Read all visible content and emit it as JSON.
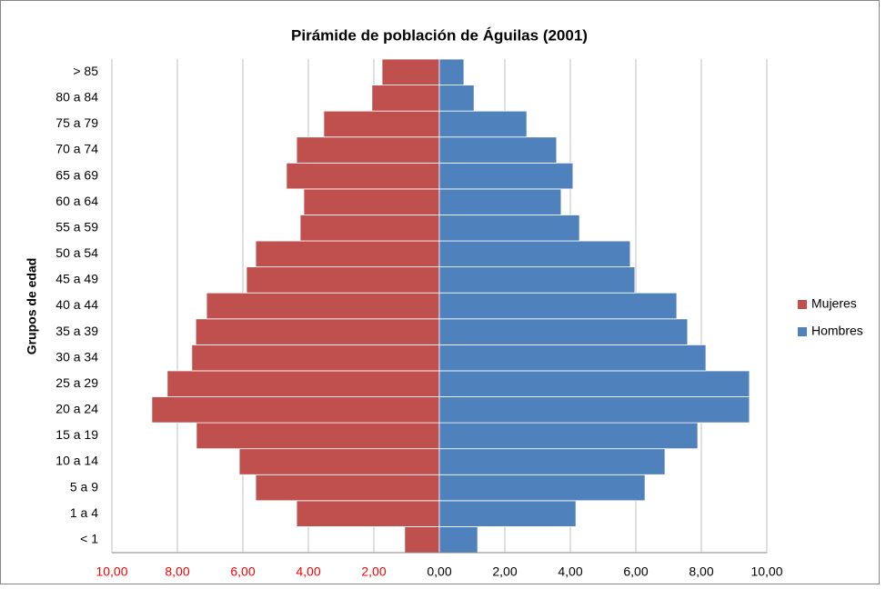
{
  "chart_data": {
    "type": "pyramid",
    "title": "Pirámide de población de Águilas (2001)",
    "y_label": "Grupos de edad",
    "categories": [
      "< 1",
      "1  a 4",
      "5 a 9",
      "10 a 14",
      "15 a 19",
      "20 a 24",
      "25 a 29",
      "30 a 34",
      "35 a 39",
      "40 a 44",
      "45 a 49",
      "50 a 54",
      "55 a 59",
      "60 a 64",
      "65 a 69",
      "70 a 74",
      "75 a 79",
      "80 a 84",
      "> 85"
    ],
    "series": [
      {
        "name": "Mujeres",
        "color": "#c0504d",
        "values": [
          -1.06,
          -4.36,
          -5.61,
          -6.11,
          -7.42,
          -8.78,
          -8.31,
          -7.56,
          -7.44,
          -7.11,
          -5.89,
          -5.61,
          -4.25,
          -4.14,
          -4.67,
          -4.36,
          -3.53,
          -2.06,
          -1.75
        ]
      },
      {
        "name": "Hombres",
        "color": "#4f81bd",
        "values": [
          1.17,
          4.17,
          6.28,
          6.89,
          7.89,
          9.47,
          9.47,
          8.14,
          7.58,
          7.25,
          5.97,
          5.83,
          4.28,
          3.72,
          4.08,
          3.58,
          2.67,
          1.06,
          0.75
        ]
      }
    ],
    "xlim": [
      -10,
      10
    ],
    "xticks": [
      {
        "value": -10,
        "label": "10,00"
      },
      {
        "value": -8,
        "label": "8,00"
      },
      {
        "value": -6,
        "label": "6,00"
      },
      {
        "value": -4,
        "label": "4,00"
      },
      {
        "value": -2,
        "label": "2,00"
      },
      {
        "value": 0,
        "label": "0,00"
      },
      {
        "value": 2,
        "label": "2,00"
      },
      {
        "value": 4,
        "label": "4,00"
      },
      {
        "value": 6,
        "label": "6,00"
      },
      {
        "value": 8,
        "label": "8,00"
      },
      {
        "value": 10,
        "label": "10,00"
      }
    ],
    "negative_tick_color": "#ff0000",
    "grid": true,
    "legend": "right"
  }
}
